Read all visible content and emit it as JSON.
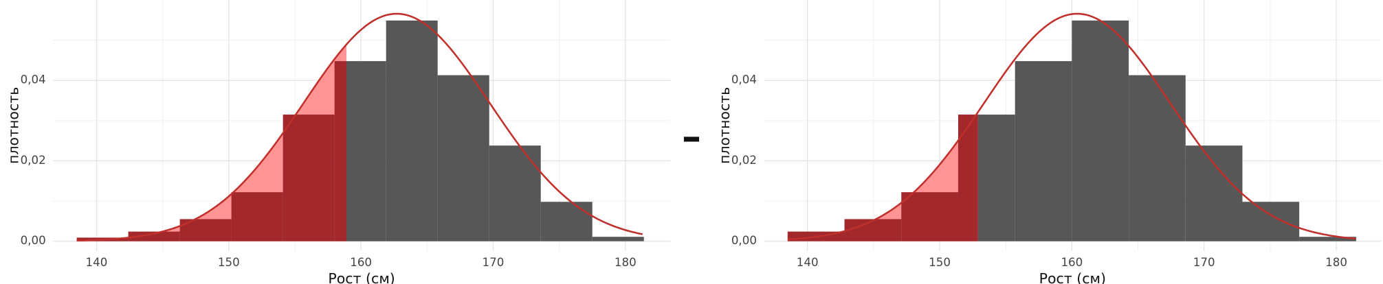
{
  "operator": "–",
  "chart_data": [
    {
      "type": "histogram",
      "x_label": "Рост (см)",
      "y_label": "плотность",
      "bins": [
        138.5,
        142.4,
        146.3,
        150.2,
        154.1,
        158.0,
        161.9,
        165.8,
        169.7,
        173.6,
        177.5,
        181.4
      ],
      "values": [
        0.0009,
        0.0024,
        0.0055,
        0.0122,
        0.0315,
        0.0448,
        0.0549,
        0.0413,
        0.0238,
        0.0098,
        0.0011
      ],
      "density_curve": {
        "mean": 162.7,
        "sd": 7.05,
        "color": "#c0302c"
      },
      "cutoff": 158.9,
      "color": "#575757",
      "shade_color": "#a3282c",
      "area_color": "#ff8e8e",
      "xlim": [
        136.7,
        183.4
      ],
      "xticks": [
        140,
        150,
        160,
        170,
        180
      ],
      "minor_xticks": [
        145,
        155,
        165,
        175
      ],
      "ylim": [
        -0.0024,
        0.06
      ],
      "yticks": [
        {
          "value": 0,
          "label": "0,00"
        },
        {
          "value": 0.02,
          "label": "0,02"
        },
        {
          "value": 0.04,
          "label": "0,04"
        }
      ],
      "minor_yticks": [
        0.01,
        0.03,
        0.05
      ],
      "grid": true
    },
    {
      "type": "histogram",
      "x_label": "Рост (см)",
      "y_label": "плотность",
      "bins": [
        138.5,
        142.8,
        147.1,
        151.4,
        155.7,
        160.0,
        164.3,
        168.6,
        172.9,
        177.2,
        181.5
      ],
      "values": [
        0.0024,
        0.0055,
        0.0122,
        0.0315,
        0.0448,
        0.0549,
        0.0413,
        0.0238,
        0.0098,
        0.0011
      ],
      "density_curve": {
        "mean": 160.4,
        "sd": 7.05,
        "color": "#c0302c"
      },
      "cutoff": 152.9,
      "color": "#575757",
      "shade_color": "#a3282c",
      "area_color": "#ff8e8e",
      "xlim": [
        136.7,
        183.4
      ],
      "xticks": [
        140,
        150,
        160,
        170,
        180
      ],
      "minor_xticks": [
        145,
        155,
        165,
        175
      ],
      "ylim": [
        -0.0024,
        0.06
      ],
      "yticks": [
        {
          "value": 0,
          "label": "0,00"
        },
        {
          "value": 0.02,
          "label": "0,02"
        },
        {
          "value": 0.04,
          "label": "0,04"
        }
      ],
      "minor_yticks": [
        0.01,
        0.03,
        0.05
      ],
      "grid": true
    }
  ]
}
